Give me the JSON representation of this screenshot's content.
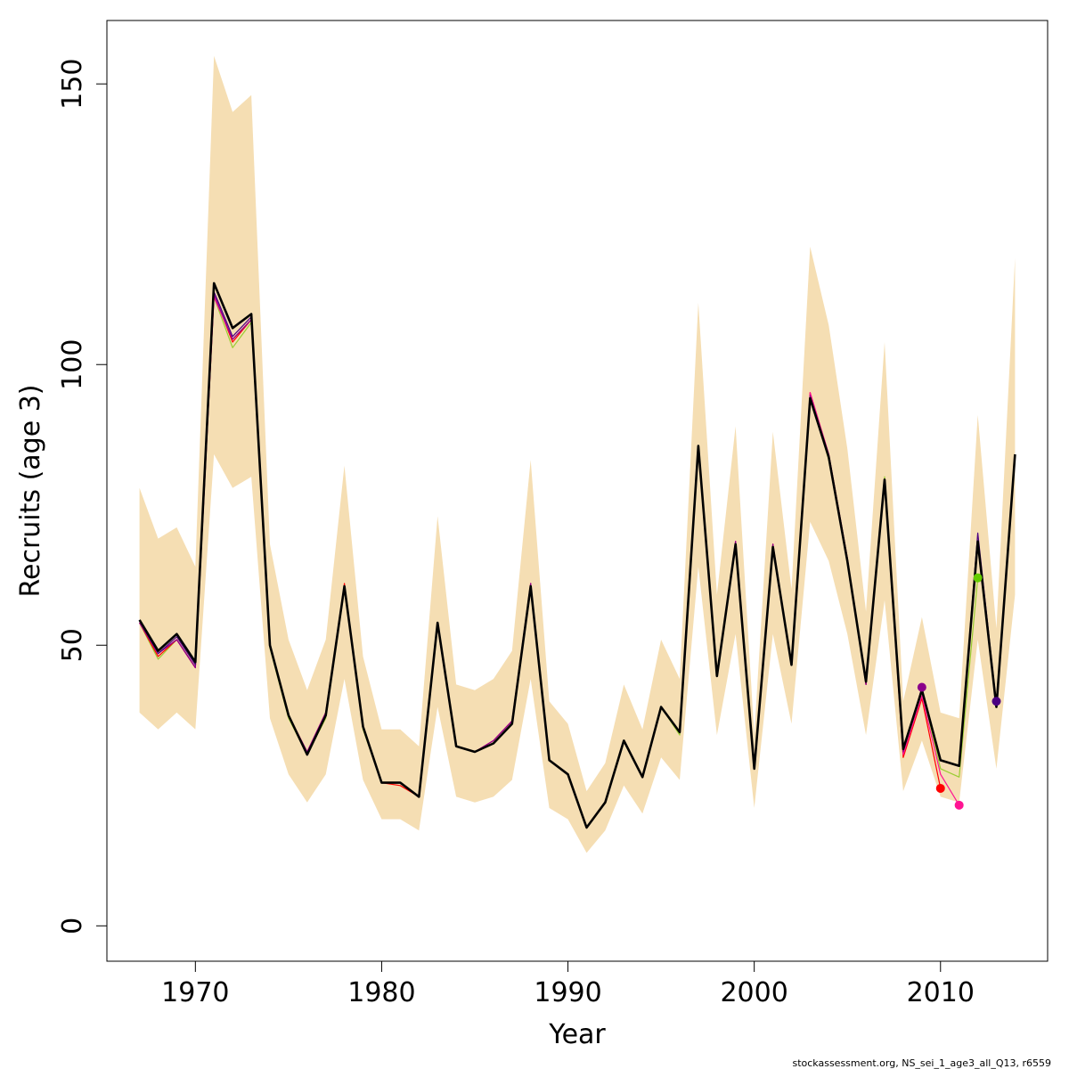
{
  "chart_data": {
    "type": "line",
    "title": "",
    "xlabel": "Year",
    "ylabel": "Recruits (age 3)",
    "xlim": [
      1965.25,
      2015.75
    ],
    "ylim": [
      -6.3,
      161.3
    ],
    "x_ticks": [
      1970,
      1980,
      1990,
      2000,
      2010
    ],
    "x_tick_labels": [
      "1970",
      "1980",
      "1990",
      "2000",
      "2010"
    ],
    "y_ticks": [
      0,
      50,
      100,
      150
    ],
    "y_tick_labels": [
      "0",
      "50",
      "100",
      "150"
    ],
    "grid": false,
    "legend": "none",
    "footnote": "stockassessment.org, NS_sei_1_age3_all_Q13, r6559",
    "confidence_band": {
      "color": "#f5deb3",
      "x": [
        1967,
        1968,
        1969,
        1970,
        1971,
        1972,
        1973,
        1974,
        1975,
        1976,
        1977,
        1978,
        1979,
        1980,
        1981,
        1982,
        1983,
        1984,
        1985,
        1986,
        1987,
        1988,
        1989,
        1990,
        1991,
        1992,
        1993,
        1994,
        1995,
        1996,
        1997,
        1998,
        1999,
        2000,
        2001,
        2002,
        2003,
        2004,
        2005,
        2006,
        2007,
        2008,
        2009,
        2010,
        2011,
        2012,
        2013,
        2014
      ],
      "lower": [
        38,
        35,
        38,
        35,
        84,
        78,
        80,
        37,
        27,
        22,
        27,
        44,
        26,
        19,
        19,
        17,
        39,
        23,
        22,
        23,
        26,
        44,
        21,
        19,
        13,
        17,
        25,
        20,
        30,
        26,
        64,
        34,
        52,
        21,
        52,
        36,
        72,
        65,
        52,
        34,
        58,
        24,
        33,
        23,
        22,
        51,
        28,
        59
      ],
      "upper": [
        78,
        69,
        71,
        64,
        155,
        145,
        148,
        68,
        51,
        42,
        51,
        82,
        48,
        35,
        35,
        32,
        73,
        43,
        42,
        44,
        49,
        83,
        40,
        36,
        24,
        29,
        43,
        35,
        51,
        44,
        111,
        59,
        89,
        34,
        88,
        60,
        121,
        107,
        85,
        56,
        104,
        40,
        55,
        38,
        37,
        91,
        53,
        119
      ]
    },
    "series": [
      {
        "color": "#000000",
        "x": [
          1967,
          1968,
          1969,
          1970,
          1971,
          1972,
          1973,
          1974,
          1975,
          1976,
          1977,
          1978,
          1979,
          1980,
          1981,
          1982,
          1983,
          1984,
          1985,
          1986,
          1987,
          1988,
          1989,
          1990,
          1991,
          1992,
          1993,
          1994,
          1995,
          1996,
          1997,
          1998,
          1999,
          2000,
          2001,
          2002,
          2003,
          2004,
          2005,
          2006,
          2007,
          2008,
          2009,
          2010,
          2011,
          2012,
          2013,
          2014
        ],
        "values": [
          54.5,
          49,
          52,
          47,
          114.5,
          106.5,
          109,
          50,
          37.5,
          30.5,
          37.5,
          60.5,
          35.5,
          25.5,
          25.5,
          23,
          54,
          32,
          31,
          32.5,
          36,
          60.5,
          29.5,
          27,
          17.5,
          22,
          33,
          26.5,
          39,
          34.5,
          85.5,
          44.5,
          68,
          28,
          67.5,
          46.5,
          94,
          83.5,
          65,
          43.5,
          79.5,
          31.5,
          42,
          29.5,
          28.5,
          68.5,
          39,
          84
        ]
      },
      {
        "color": "#9acd32",
        "x": [
          1967,
          1968,
          1969,
          1970,
          1971,
          1972,
          1973,
          1974,
          1975,
          1976,
          1977,
          1978,
          1979,
          1980,
          1981,
          1982,
          1983,
          1984,
          1985,
          1986,
          1987,
          1988,
          1989,
          1990,
          1991,
          1992,
          1993,
          1994,
          1995,
          1996,
          1997,
          1998,
          1999,
          2000,
          2001,
          2002,
          2003,
          2004,
          2005,
          2006,
          2007,
          2008,
          2009,
          2010,
          2011,
          2012
        ],
        "values": [
          54,
          47.5,
          51,
          46,
          112,
          103,
          107.5,
          49.5,
          37,
          30.5,
          37,
          60,
          35,
          25.5,
          25.5,
          23,
          53.5,
          32,
          31,
          32.5,
          36,
          60,
          29.5,
          27,
          17.5,
          22,
          33,
          26.5,
          39,
          34,
          85.5,
          44.5,
          68,
          28,
          67.5,
          46.5,
          94.5,
          83,
          65,
          43,
          80,
          31,
          42,
          28,
          26.5,
          62
        ]
      },
      {
        "color": "#ff0000",
        "x": [
          1967,
          1968,
          1969,
          1970,
          1971,
          1972,
          1973,
          1974,
          1975,
          1976,
          1977,
          1978,
          1979,
          1980,
          1981,
          1982,
          1983,
          1984,
          1985,
          1986,
          1987,
          1988,
          1989,
          1990,
          1991,
          1992,
          1993,
          1994,
          1995,
          1996,
          1997,
          1998,
          1999,
          2000,
          2001,
          2002,
          2003,
          2004,
          2005,
          2006,
          2007,
          2008,
          2009,
          2010
        ],
        "values": [
          54,
          48,
          51,
          46,
          112.5,
          104,
          108,
          50,
          37.5,
          31,
          38,
          61,
          35.5,
          25.5,
          25,
          23,
          53.5,
          32,
          31,
          33,
          36.5,
          61,
          29.5,
          27,
          17.5,
          22,
          33,
          26.5,
          39,
          34.5,
          85.5,
          44.5,
          68.5,
          28,
          68,
          46.5,
          95,
          84,
          65.5,
          43,
          79,
          30,
          40.5,
          24.5
        ]
      },
      {
        "color": "#ff1493",
        "x": [
          1967,
          1968,
          1969,
          1970,
          1971,
          1972,
          1973,
          1974,
          1975,
          1976,
          1977,
          1978,
          1979,
          1980,
          1981,
          1982,
          1983,
          1984,
          1985,
          1986,
          1987,
          1988,
          1989,
          1990,
          1991,
          1992,
          1993,
          1994,
          1995,
          1996,
          1997,
          1998,
          1999,
          2000,
          2001,
          2002,
          2003,
          2004,
          2005,
          2006,
          2007,
          2008,
          2009,
          2010,
          2011
        ],
        "values": [
          54,
          48.5,
          51,
          46,
          112,
          104.5,
          108,
          50,
          37.5,
          31,
          38,
          60.5,
          35.5,
          25.5,
          25.5,
          23,
          53.5,
          32,
          31,
          33,
          36.5,
          61,
          29.5,
          27,
          17.5,
          22,
          33,
          26.5,
          39,
          34.5,
          85.5,
          44.5,
          68.5,
          28,
          68,
          46.5,
          95,
          84,
          65.5,
          43,
          79,
          30.5,
          41,
          27,
          21.5
        ]
      },
      {
        "color": "#8b008b",
        "x": [
          1967,
          1968,
          1969,
          1970,
          1971,
          1972,
          1973,
          1974,
          1975,
          1976,
          1977,
          1978,
          1979,
          1980,
          1981,
          1982,
          1983,
          1984,
          1985,
          1986,
          1987,
          1988,
          1989,
          1990,
          1991,
          1992,
          1993,
          1994,
          1995,
          1996,
          1997,
          1998,
          1999,
          2000,
          2001,
          2002,
          2003,
          2004,
          2005,
          2006,
          2007,
          2008,
          2009
        ],
        "values": [
          54,
          48.5,
          51,
          46,
          112.5,
          104.5,
          108,
          50,
          37.5,
          31,
          38,
          60.5,
          35.5,
          25.5,
          25.5,
          23,
          53.5,
          32,
          31,
          33,
          36.5,
          61,
          29.5,
          27,
          17.5,
          22,
          33,
          26.5,
          39,
          34.5,
          85.5,
          44.5,
          68.5,
          28,
          68,
          46.5,
          94.5,
          84,
          65.5,
          43,
          79,
          31,
          42.5
        ]
      },
      {
        "color": "#4b0082",
        "x": [
          1967,
          1968,
          1969,
          1970,
          1971,
          1972,
          1973,
          1974,
          1975,
          1976,
          1977,
          1978,
          1979,
          1980,
          1981,
          1982,
          1983,
          1984,
          1985,
          1986,
          1987,
          1988,
          1989,
          1990,
          1991,
          1992,
          1993,
          1994,
          1995,
          1996,
          1997,
          1998,
          1999,
          2000,
          2001,
          2002,
          2003,
          2004,
          2005,
          2006,
          2007,
          2008,
          2009,
          2010,
          2011,
          2012,
          2013
        ],
        "values": [
          54.5,
          48.5,
          51.5,
          46.5,
          113,
          105,
          108.5,
          50,
          37.5,
          30.5,
          37.5,
          60.5,
          35.5,
          25.5,
          25.5,
          23,
          53.5,
          32,
          31,
          32.5,
          36,
          60.5,
          29.5,
          27,
          17.5,
          22,
          33,
          26.5,
          39,
          34.5,
          85.5,
          44.5,
          68,
          28,
          67.5,
          46.5,
          94,
          83.5,
          65,
          43.5,
          79.5,
          31.5,
          42,
          29.5,
          28.5,
          70,
          39.5
        ]
      }
    ],
    "end_points": [
      {
        "x": 2009,
        "y": 42.5,
        "color": "#8b008b"
      },
      {
        "x": 2010,
        "y": 24.5,
        "color": "#ff0000"
      },
      {
        "x": 2011,
        "y": 21.5,
        "color": "#ff1493"
      },
      {
        "x": 2012,
        "y": 62,
        "color": "#66cc00"
      },
      {
        "x": 2013,
        "y": 40,
        "color": "#4b0082"
      }
    ]
  }
}
